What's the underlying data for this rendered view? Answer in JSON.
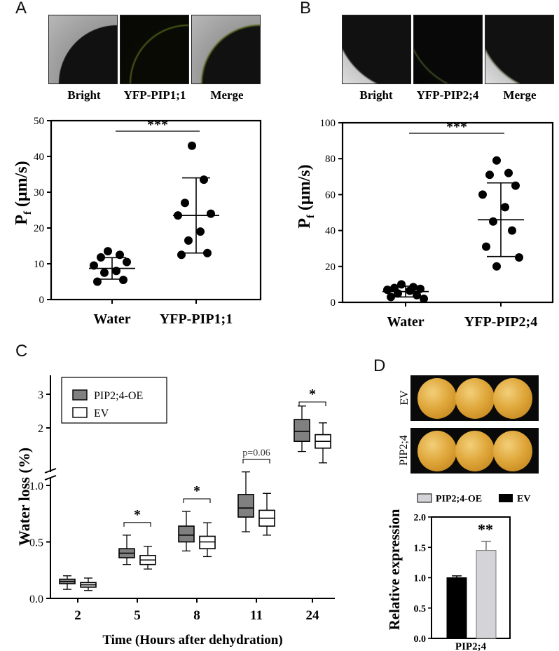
{
  "panels": {
    "a": {
      "letter": "A",
      "image_labels": [
        "Bright",
        "YFP-PIP1;1",
        "Merge"
      ]
    },
    "b": {
      "letter": "B",
      "image_labels": [
        "Bright",
        "YFP-PIP2;4",
        "Merge"
      ]
    },
    "c": {
      "letter": "C"
    },
    "d": {
      "letter": "D",
      "row_labels": [
        "EV",
        "PIP2;4"
      ]
    }
  },
  "chart_data": [
    {
      "id": "A",
      "type": "scatter",
      "ylabel_main": "P",
      "ylabel_sub": "f",
      "ylabel_unit": " (μm/s)",
      "ylim": [
        0,
        50
      ],
      "yticks": [
        0,
        10,
        20,
        30,
        40,
        50
      ],
      "categories": [
        "Water",
        "YFP-PIP1;1"
      ],
      "points": [
        [
          13.5,
          12.5,
          11.8,
          10.5,
          9.5,
          8.0,
          7.5,
          5.5,
          5.0
        ],
        [
          43.0,
          33.5,
          27.0,
          24.0,
          23.5,
          19.0,
          16.5,
          13.0,
          12.5
        ]
      ],
      "means": [
        8.7,
        23.5
      ],
      "sd": [
        3.0,
        10.5
      ],
      "significance": "***"
    },
    {
      "id": "B",
      "type": "scatter",
      "ylabel_main": "P",
      "ylabel_sub": "f",
      "ylabel_unit": " (μm/s)",
      "ylim": [
        0,
        100
      ],
      "yticks": [
        0,
        20,
        40,
        60,
        80,
        100
      ],
      "categories": [
        "Water",
        "YFP-PIP2;4"
      ],
      "points": [
        [
          10.0,
          8.5,
          8.0,
          7.5,
          7.0,
          6.5,
          5.0,
          4.0,
          3.0,
          2.0
        ],
        [
          79.0,
          72.0,
          71.0,
          65.0,
          60.0,
          53.0,
          45.0,
          40.0,
          31.0,
          25.0,
          20.0
        ]
      ],
      "means": [
        6.0,
        46.0
      ],
      "sd": [
        3.0,
        20.5
      ],
      "significance": "***"
    },
    {
      "id": "C",
      "type": "box",
      "xlabel": "Time (Hours after dehydration)",
      "ylabel": "Water loss (%)",
      "categories": [
        "2",
        "5",
        "8",
        "11",
        "24"
      ],
      "lower_ticks": [
        "0.0",
        "0.5",
        "1.0"
      ],
      "upper_ticks": [
        "2",
        "3"
      ],
      "legend": [
        "PIP2;4-OE",
        "EV"
      ],
      "series": [
        {
          "name": "PIP2;4-OE",
          "color": "#808080",
          "boxes": [
            [
              0.08,
              0.13,
              0.15,
              0.17,
              0.2
            ],
            [
              0.3,
              0.36,
              0.4,
              0.44,
              0.56
            ],
            [
              0.42,
              0.5,
              0.56,
              0.64,
              0.77
            ],
            [
              0.59,
              0.72,
              0.8,
              0.92,
              1.12
            ],
            [
              1.3,
              1.6,
              1.9,
              2.25,
              2.65
            ]
          ]
        },
        {
          "name": "EV",
          "color": "#ffffff",
          "boxes": [
            [
              0.07,
              0.1,
              0.12,
              0.14,
              0.18
            ],
            [
              0.26,
              0.3,
              0.34,
              0.38,
              0.46
            ],
            [
              0.37,
              0.44,
              0.5,
              0.55,
              0.67
            ],
            [
              0.56,
              0.64,
              0.71,
              0.78,
              0.93
            ],
            [
              1.2,
              1.4,
              1.6,
              1.8,
              2.15
            ]
          ]
        }
      ],
      "annotations": [
        "",
        "*",
        "*",
        "p=0.06",
        "*"
      ]
    },
    {
      "id": "D",
      "type": "bar",
      "ylabel": "Relative expression",
      "categories": [
        "PIP2;4"
      ],
      "ylim": [
        0,
        2.0
      ],
      "yticks": [
        "0.0",
        "0.5",
        "1.0",
        "1.5",
        "2.0"
      ],
      "legend": [
        "PIP2;4-OE",
        "EV"
      ],
      "series": [
        {
          "name": "EV",
          "color": "#000000",
          "values": [
            1.0
          ],
          "err": [
            0.03
          ]
        },
        {
          "name": "PIP2;4-OE",
          "color": "#d4d4d8",
          "values": [
            1.45
          ],
          "err": [
            0.15
          ]
        }
      ],
      "significance": "**"
    }
  ]
}
